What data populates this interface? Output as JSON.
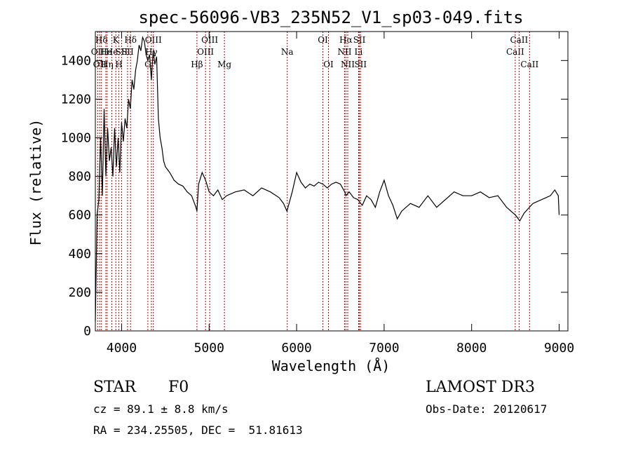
{
  "chart_data": {
    "type": "line",
    "title": "spec-56096-VB3_235N52_V1_sp03-049.fits",
    "xlabel": "Wavelength (Å)",
    "ylabel": "Flux (relative)",
    "xlim": [
      3700,
      9100
    ],
    "ylim": [
      0,
      1550
    ],
    "x_ticks": [
      4000,
      5000,
      6000,
      7000,
      8000,
      9000
    ],
    "y_ticks": [
      0,
      200,
      400,
      600,
      800,
      1000,
      1200,
      1400
    ],
    "grid": false,
    "series": [
      {
        "x": [
          3700,
          3720,
          3740,
          3760,
          3780,
          3800,
          3820,
          3840,
          3860,
          3880,
          3900,
          3920,
          3940,
          3960,
          3980,
          4000,
          4020,
          4040,
          4060,
          4080,
          4100,
          4120,
          4140,
          4160,
          4180,
          4200,
          4220,
          4240,
          4260,
          4280,
          4300,
          4320,
          4340,
          4360,
          4380,
          4400,
          4420,
          4440,
          4460,
          4480,
          4500,
          4550,
          4600,
          4650,
          4700,
          4750,
          4800,
          4850,
          4861,
          4880,
          4920,
          4960,
          5000,
          5050,
          5100,
          5150,
          5200,
          5300,
          5400,
          5500,
          5600,
          5700,
          5800,
          5850,
          5890,
          5950,
          6000,
          6050,
          6100,
          6150,
          6200,
          6250,
          6300,
          6350,
          6400,
          6450,
          6500,
          6550,
          6563,
          6600,
          6650,
          6700,
          6750,
          6800,
          6850,
          6900,
          6950,
          7000,
          7050,
          7100,
          7150,
          7200,
          7300,
          7400,
          7500,
          7600,
          7700,
          7800,
          7900,
          8000,
          8100,
          8200,
          8300,
          8400,
          8500,
          8550,
          8600,
          8700,
          8800,
          8900,
          8950,
          8990,
          9000
        ],
        "y": [
          50,
          600,
          680,
          1000,
          700,
          1150,
          800,
          1050,
          880,
          950,
          800,
          1050,
          850,
          1000,
          820,
          1080,
          980,
          1100,
          1050,
          1200,
          1150,
          1300,
          1250,
          1350,
          1400,
          1480,
          1450,
          1520,
          1500,
          1430,
          1400,
          1430,
          1300,
          1450,
          1380,
          1420,
          1100,
          1000,
          950,
          880,
          850,
          820,
          780,
          760,
          750,
          720,
          700,
          640,
          620,
          760,
          820,
          780,
          720,
          700,
          730,
          680,
          700,
          720,
          730,
          700,
          740,
          720,
          690,
          660,
          620,
          720,
          820,
          770,
          740,
          760,
          750,
          770,
          760,
          740,
          760,
          770,
          760,
          720,
          700,
          720,
          690,
          680,
          650,
          700,
          680,
          640,
          720,
          780,
          700,
          650,
          580,
          620,
          660,
          640,
          700,
          640,
          680,
          720,
          700,
          700,
          720,
          690,
          700,
          640,
          600,
          570,
          610,
          660,
          680,
          700,
          730,
          700,
          600
        ]
      }
    ],
    "spectral_lines": [
      {
        "x": 3727,
        "label": "OII",
        "row": 1
      },
      {
        "x": 3750,
        "label": "OII",
        "row": 2
      },
      {
        "x": 3770,
        "label": "Hδ",
        "row": 0
      },
      {
        "x": 3820,
        "label": "He",
        "row": 1
      },
      {
        "x": 3835,
        "label": "Hη",
        "row": 2
      },
      {
        "x": 3889,
        "label": "He",
        "row": 1
      },
      {
        "x": 3934,
        "label": "K",
        "row": 0
      },
      {
        "x": 3969,
        "label": "H",
        "row": 2
      },
      {
        "x": 4000,
        "label": "SII",
        "row": 1
      },
      {
        "x": 4102,
        "label": "Hδ",
        "row": 0
      },
      {
        "x": 4068,
        "label": "SII",
        "row": 1
      },
      {
        "x": 4300,
        "label": "G",
        "row": 2
      },
      {
        "x": 4340,
        "label": "Hγ",
        "row": 1
      },
      {
        "x": 4363,
        "label": "OIII",
        "row": 0
      },
      {
        "x": 4861,
        "label": "Hβ",
        "row": 2
      },
      {
        "x": 4959,
        "label": "OIII",
        "row": 1
      },
      {
        "x": 5007,
        "label": "OIII",
        "row": 0
      },
      {
        "x": 5175,
        "label": "Mg",
        "row": 2
      },
      {
        "x": 5893,
        "label": "Na",
        "row": 1
      },
      {
        "x": 6300,
        "label": "OI",
        "row": 0
      },
      {
        "x": 6364,
        "label": "OI",
        "row": 2
      },
      {
        "x": 6548,
        "label": "NII",
        "row": 1
      },
      {
        "x": 6563,
        "label": "Hα",
        "row": 0
      },
      {
        "x": 6584,
        "label": "NII",
        "row": 2
      },
      {
        "x": 6708,
        "label": "Li",
        "row": 1
      },
      {
        "x": 6717,
        "label": "SII",
        "row": 0
      },
      {
        "x": 6731,
        "label": "SII",
        "row": 2
      },
      {
        "x": 8498,
        "label": "CaII",
        "row": 1
      },
      {
        "x": 8542,
        "label": "CaII",
        "row": 0
      },
      {
        "x": 8662,
        "label": "CaII",
        "row": 2
      }
    ]
  },
  "info": {
    "class": "STAR",
    "subclass": "F0",
    "survey": "LAMOST DR3",
    "cz": "cz = 89.1 ± 8.8 km/s",
    "obs_date": "Obs-Date: 20120617",
    "coords": "RA = 234.25505, DEC =  51.81613"
  }
}
